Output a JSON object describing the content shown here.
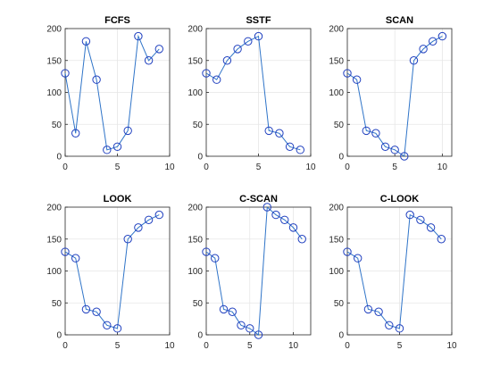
{
  "figure": {
    "background": "#ffffff",
    "axes_color": "#262626",
    "grid_color": "#e6e6e6",
    "line_color": "#2f74c8",
    "marker_color": "#1f3fbf"
  },
  "chart_data": [
    {
      "type": "line",
      "title": "FCFS",
      "marker": "circle",
      "grid": true,
      "xlim": [
        0,
        10
      ],
      "ylim": [
        0,
        200
      ],
      "xticks": [
        0,
        5,
        10
      ],
      "yticks": [
        0,
        50,
        100,
        150,
        200
      ],
      "x": [
        0,
        1,
        2,
        3,
        4,
        5,
        6,
        7,
        8,
        9
      ],
      "y": [
        130,
        36,
        180,
        120,
        10,
        15,
        40,
        188,
        150,
        168
      ]
    },
    {
      "type": "line",
      "title": "SSTF",
      "marker": "circle",
      "grid": true,
      "xlim": [
        0,
        10
      ],
      "ylim": [
        0,
        200
      ],
      "xticks": [
        0,
        5,
        10
      ],
      "yticks": [
        0,
        50,
        100,
        150,
        200
      ],
      "x": [
        0,
        1,
        2,
        3,
        4,
        5,
        6,
        7,
        8,
        9
      ],
      "y": [
        130,
        120,
        150,
        168,
        180,
        188,
        40,
        36,
        15,
        10
      ]
    },
    {
      "type": "line",
      "title": "SCAN",
      "marker": "circle",
      "grid": true,
      "xlim": [
        0,
        11
      ],
      "ylim": [
        0,
        200
      ],
      "xticks": [
        0,
        5,
        10
      ],
      "yticks": [
        0,
        50,
        100,
        150,
        200
      ],
      "x": [
        0,
        1,
        2,
        3,
        4,
        5,
        6,
        7,
        8,
        9,
        10
      ],
      "y": [
        130,
        120,
        40,
        36,
        15,
        10,
        0,
        150,
        168,
        180,
        188
      ]
    },
    {
      "type": "line",
      "title": "LOOK",
      "marker": "circle",
      "grid": true,
      "xlim": [
        0,
        10
      ],
      "ylim": [
        0,
        200
      ],
      "xticks": [
        0,
        5,
        10
      ],
      "yticks": [
        0,
        50,
        100,
        150,
        200
      ],
      "x": [
        0,
        1,
        2,
        3,
        4,
        5,
        6,
        7,
        8,
        9
      ],
      "y": [
        130,
        120,
        40,
        36,
        15,
        10,
        150,
        168,
        180,
        188
      ]
    },
    {
      "type": "line",
      "title": "C-SCAN",
      "marker": "circle",
      "grid": true,
      "xlim": [
        0,
        12
      ],
      "ylim": [
        0,
        200
      ],
      "xticks": [
        0,
        5,
        10
      ],
      "yticks": [
        0,
        50,
        100,
        150,
        200
      ],
      "x": [
        0,
        1,
        2,
        3,
        4,
        5,
        6,
        7,
        8,
        9,
        10,
        11
      ],
      "y": [
        130,
        120,
        40,
        36,
        15,
        10,
        0,
        200,
        188,
        180,
        168,
        150
      ]
    },
    {
      "type": "line",
      "title": "C-LOOK",
      "marker": "circle",
      "grid": true,
      "xlim": [
        0,
        10
      ],
      "ylim": [
        0,
        200
      ],
      "xticks": [
        0,
        5,
        10
      ],
      "yticks": [
        0,
        50,
        100,
        150,
        200
      ],
      "x": [
        0,
        1,
        2,
        3,
        4,
        5,
        6,
        7,
        8,
        9
      ],
      "y": [
        130,
        120,
        40,
        36,
        15,
        10,
        188,
        180,
        168,
        150
      ]
    }
  ]
}
